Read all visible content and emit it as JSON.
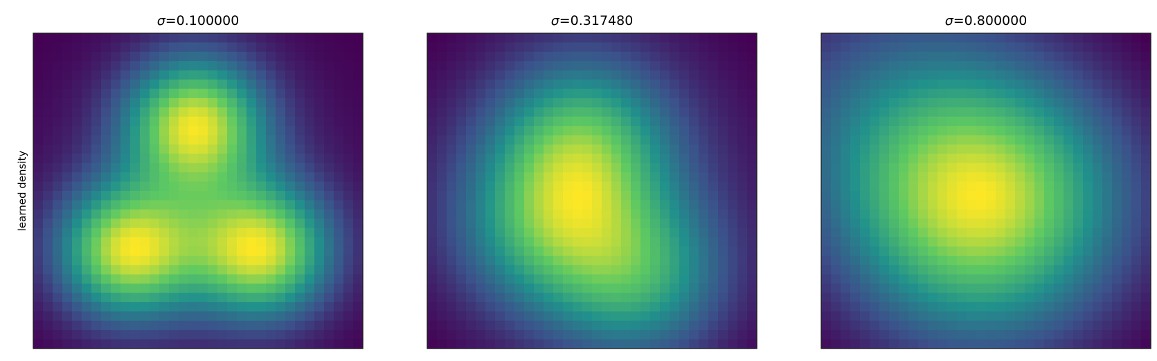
{
  "figure": {
    "ylabel": "learned density",
    "colormap": [
      "#440154",
      "#3b528b",
      "#21918c",
      "#5ec962",
      "#fde725"
    ]
  },
  "chart_data": [
    {
      "type": "heatmap",
      "title": "σ=0.100000",
      "title_sigma": "σ",
      "title_value": "=0.100000",
      "ylabel": "learned density",
      "xticks": [],
      "yticks": [],
      "grid": false,
      "domain": {
        "x": [
          0,
          1
        ],
        "y": [
          0,
          1
        ]
      },
      "modes": [
        {
          "x": 0.49,
          "y": 0.71,
          "weight": 0.6
        },
        {
          "x": 0.29,
          "y": 0.31,
          "weight": 0.6
        },
        {
          "x": 0.69,
          "y": 0.31,
          "weight": 0.6
        }
      ],
      "spread": 0.15,
      "floor": 0.08
    },
    {
      "type": "heatmap",
      "title": "σ=0.317480",
      "title_sigma": "σ",
      "title_value": "=0.317480",
      "ylabel": "",
      "xticks": [],
      "yticks": [],
      "grid": false,
      "domain": {
        "x": [
          0,
          1
        ],
        "y": [
          0,
          1
        ]
      },
      "modes": [
        {
          "x": 0.47,
          "y": 0.66,
          "weight": 0.6
        },
        {
          "x": 0.35,
          "y": 0.38,
          "weight": 0.5
        },
        {
          "x": 0.64,
          "y": 0.23,
          "weight": 0.55
        }
      ],
      "spread": 0.19,
      "floor": 0.22
    },
    {
      "type": "heatmap",
      "title": "σ=0.800000",
      "title_sigma": "σ",
      "title_value": "=0.800000",
      "ylabel": "",
      "xticks": [],
      "yticks": [],
      "grid": false,
      "domain": {
        "x": [
          0,
          1
        ],
        "y": [
          0,
          1
        ]
      },
      "modes": [
        {
          "x": 0.48,
          "y": 0.46,
          "weight": 1.0
        },
        {
          "x": 0.1,
          "y": 0.85,
          "weight": 0.22
        }
      ],
      "spread": 0.3,
      "floor": 0.18
    }
  ]
}
